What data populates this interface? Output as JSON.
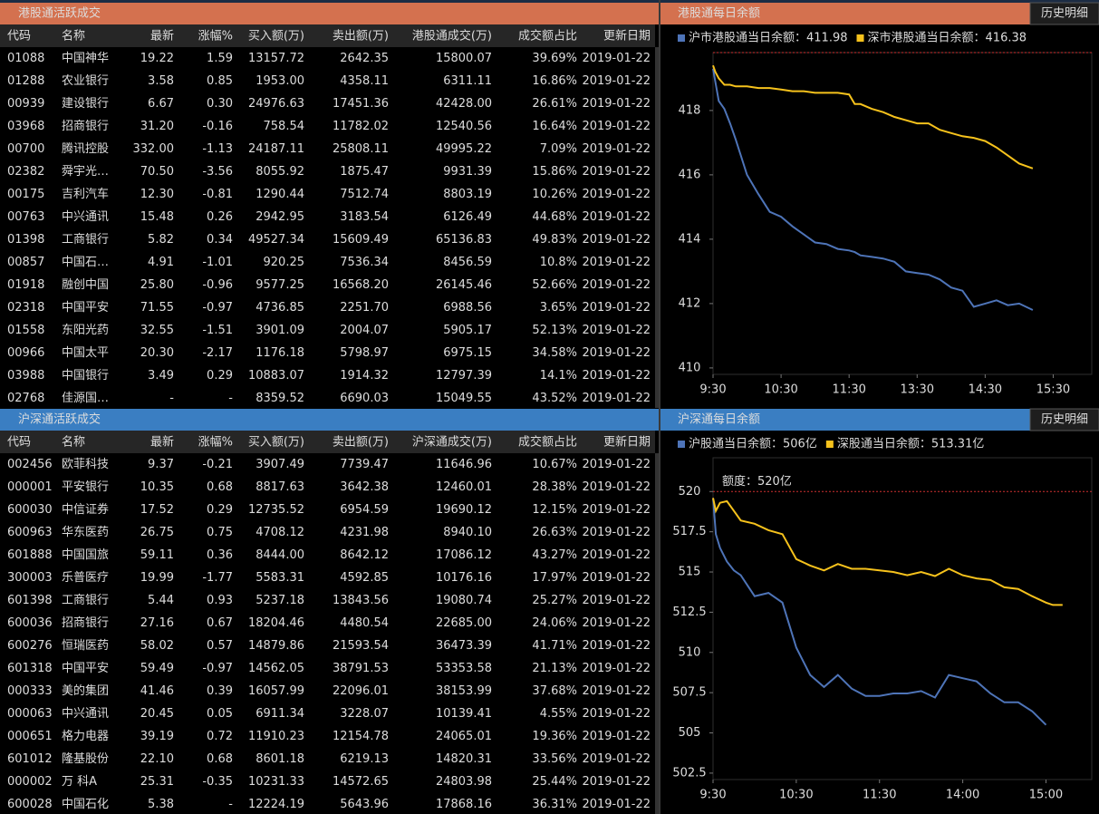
{
  "tables": [
    {
      "title": "港股通活跃成交",
      "headers": [
        "代码",
        "名称",
        "最新",
        "涨幅%",
        "买入额(万)",
        "卖出额(万)",
        "港股通成交(万)",
        "成交额占比",
        "更新日期"
      ],
      "rows": [
        [
          "01088",
          "中国神华",
          "19.22",
          "1.59",
          "13157.72",
          "2642.35",
          "15800.07",
          "39.69%",
          "2019-01-22"
        ],
        [
          "01288",
          "农业银行",
          "3.58",
          "0.85",
          "1953.00",
          "4358.11",
          "6311.11",
          "16.86%",
          "2019-01-22"
        ],
        [
          "00939",
          "建设银行",
          "6.67",
          "0.30",
          "24976.63",
          "17451.36",
          "42428.00",
          "26.61%",
          "2019-01-22"
        ],
        [
          "03968",
          "招商银行",
          "31.20",
          "-0.16",
          "758.54",
          "11782.02",
          "12540.56",
          "16.64%",
          "2019-01-22"
        ],
        [
          "00700",
          "腾讯控股",
          "332.00",
          "-1.13",
          "24187.11",
          "25808.11",
          "49995.22",
          "7.09%",
          "2019-01-22"
        ],
        [
          "02382",
          "舜宇光…",
          "70.50",
          "-3.56",
          "8055.92",
          "1875.47",
          "9931.39",
          "15.86%",
          "2019-01-22"
        ],
        [
          "00175",
          "吉利汽车",
          "12.30",
          "-0.81",
          "1290.44",
          "7512.74",
          "8803.19",
          "10.26%",
          "2019-01-22"
        ],
        [
          "00763",
          "中兴通讯",
          "15.48",
          "0.26",
          "2942.95",
          "3183.54",
          "6126.49",
          "44.68%",
          "2019-01-22"
        ],
        [
          "01398",
          "工商银行",
          "5.82",
          "0.34",
          "49527.34",
          "15609.49",
          "65136.83",
          "49.83%",
          "2019-01-22"
        ],
        [
          "00857",
          "中国石…",
          "4.91",
          "-1.01",
          "920.25",
          "7536.34",
          "8456.59",
          "10.8%",
          "2019-01-22"
        ],
        [
          "01918",
          "融创中国",
          "25.80",
          "-0.96",
          "9577.25",
          "16568.20",
          "26145.46",
          "52.66%",
          "2019-01-22"
        ],
        [
          "02318",
          "中国平安",
          "71.55",
          "-0.97",
          "4736.85",
          "2251.70",
          "6988.56",
          "3.65%",
          "2019-01-22"
        ],
        [
          "01558",
          "东阳光药",
          "32.55",
          "-1.51",
          "3901.09",
          "2004.07",
          "5905.17",
          "52.13%",
          "2019-01-22"
        ],
        [
          "00966",
          "中国太平",
          "20.30",
          "-2.17",
          "1176.18",
          "5798.97",
          "6975.15",
          "34.58%",
          "2019-01-22"
        ],
        [
          "03988",
          "中国银行",
          "3.49",
          "0.29",
          "10883.07",
          "1914.32",
          "12797.39",
          "14.1%",
          "2019-01-22"
        ],
        [
          "02768",
          "佳源国…",
          "-",
          "-",
          "8359.52",
          "6690.03",
          "15049.55",
          "43.52%",
          "2019-01-22"
        ]
      ]
    },
    {
      "title": "沪深通活跃成交",
      "headers": [
        "代码",
        "名称",
        "最新",
        "涨幅%",
        "买入额(万)",
        "卖出额(万)",
        "沪深通成交(万)",
        "成交额占比",
        "更新日期"
      ],
      "rows": [
        [
          "002456",
          "欧菲科技",
          "9.37",
          "-0.21",
          "3907.49",
          "7739.47",
          "11646.96",
          "10.67%",
          "2019-01-22"
        ],
        [
          "000001",
          "平安银行",
          "10.35",
          "0.68",
          "8817.63",
          "3642.38",
          "12460.01",
          "28.38%",
          "2019-01-22"
        ],
        [
          "600030",
          "中信证券",
          "17.52",
          "0.29",
          "12735.52",
          "6954.59",
          "19690.12",
          "12.15%",
          "2019-01-22"
        ],
        [
          "600963",
          "华东医药",
          "26.75",
          "0.75",
          "4708.12",
          "4231.98",
          "8940.10",
          "26.63%",
          "2019-01-22"
        ],
        [
          "601888",
          "中国国旅",
          "59.11",
          "0.36",
          "8444.00",
          "8642.12",
          "17086.12",
          "43.27%",
          "2019-01-22"
        ],
        [
          "300003",
          "乐普医疗",
          "19.99",
          "-1.77",
          "5583.31",
          "4592.85",
          "10176.16",
          "17.97%",
          "2019-01-22"
        ],
        [
          "601398",
          "工商银行",
          "5.44",
          "0.93",
          "5237.18",
          "13843.56",
          "19080.74",
          "25.27%",
          "2019-01-22"
        ],
        [
          "600036",
          "招商银行",
          "27.16",
          "0.67",
          "18204.46",
          "4480.54",
          "22685.00",
          "24.06%",
          "2019-01-22"
        ],
        [
          "600276",
          "恒瑞医药",
          "58.02",
          "0.57",
          "14879.86",
          "21593.54",
          "36473.39",
          "41.71%",
          "2019-01-22"
        ],
        [
          "601318",
          "中国平安",
          "59.49",
          "-0.97",
          "14562.05",
          "38791.53",
          "53353.58",
          "21.13%",
          "2019-01-22"
        ],
        [
          "000333",
          "美的集团",
          "41.46",
          "0.39",
          "16057.99",
          "22096.01",
          "38153.99",
          "37.68%",
          "2019-01-22"
        ],
        [
          "000063",
          "中兴通讯",
          "20.45",
          "0.05",
          "6911.34",
          "3228.07",
          "10139.41",
          "4.55%",
          "2019-01-22"
        ],
        [
          "000651",
          "格力电器",
          "39.19",
          "0.72",
          "11910.23",
          "12154.78",
          "24065.01",
          "19.36%",
          "2019-01-22"
        ],
        [
          "601012",
          "隆基股份",
          "22.10",
          "0.68",
          "8601.18",
          "6219.13",
          "14820.31",
          "33.56%",
          "2019-01-22"
        ],
        [
          "000002",
          "万 科A",
          "25.31",
          "-0.35",
          "10231.33",
          "14572.65",
          "24803.98",
          "25.44%",
          "2019-01-22"
        ],
        [
          "600028",
          "中国石化",
          "5.38",
          "-",
          "12224.19",
          "5643.96",
          "17868.16",
          "36.31%",
          "2019-01-22"
        ]
      ]
    }
  ],
  "chart_data": [
    {
      "type": "line",
      "title": "港股通每日余额",
      "button": "历史明细",
      "x": [
        0,
        2,
        5,
        10,
        15,
        20,
        30,
        40,
        50,
        60,
        70,
        80,
        90,
        100,
        110,
        120,
        125,
        130,
        140,
        150,
        160,
        170,
        180,
        190,
        200,
        210,
        220,
        230,
        240,
        250,
        260,
        270,
        282
      ],
      "xlim": [
        0,
        334
      ],
      "xticks": [
        {
          "value": 0,
          "label": "9:30"
        },
        {
          "value": 60,
          "label": "10:30"
        },
        {
          "value": 120,
          "label": "11:30"
        },
        {
          "value": 180,
          "label": "13:30"
        },
        {
          "value": 240,
          "label": "14:30"
        },
        {
          "value": 300,
          "label": "15:30"
        }
      ],
      "ylim": [
        409.8,
        419.8
      ],
      "yticks": [
        410,
        412,
        414,
        416,
        418
      ],
      "series": [
        {
          "name": "沪市港股通当日余额：",
          "color": "#4e74b8",
          "latest": 411.98,
          "values": [
            419.3,
            418.9,
            418.3,
            418.05,
            417.6,
            417.1,
            416.0,
            415.4,
            414.85,
            414.7,
            414.4,
            414.15,
            413.9,
            413.85,
            413.7,
            413.65,
            413.6,
            413.5,
            413.45,
            413.4,
            413.3,
            413.0,
            412.95,
            412.9,
            412.75,
            412.5,
            412.4,
            411.9,
            412.0,
            412.1,
            411.95,
            412.0,
            411.8
          ]
        },
        {
          "name": "深市港股通当日余额：",
          "color": "#f6c21c",
          "latest": 416.38,
          "values": [
            419.4,
            419.2,
            419.0,
            418.8,
            418.8,
            418.75,
            418.75,
            418.7,
            418.7,
            418.65,
            418.6,
            418.6,
            418.55,
            418.55,
            418.55,
            418.5,
            418.2,
            418.2,
            418.05,
            417.95,
            417.8,
            417.7,
            417.6,
            417.6,
            417.4,
            417.3,
            417.2,
            417.15,
            417.05,
            416.85,
            416.6,
            416.35,
            416.2
          ]
        }
      ]
    },
    {
      "type": "line",
      "title": "沪深通每日余额",
      "button": "历史明细",
      "x": [
        0,
        2,
        5,
        10,
        15,
        20,
        30,
        40,
        50,
        60,
        70,
        80,
        90,
        100,
        110,
        120,
        130,
        140,
        150,
        160,
        170,
        180,
        190,
        200,
        210,
        220,
        230,
        240,
        245,
        252
      ],
      "xlim": [
        0,
        273
      ],
      "xticks": [
        {
          "value": 0,
          "label": "9:30"
        },
        {
          "value": 60,
          "label": "10:30"
        },
        {
          "value": 120,
          "label": "11:30"
        },
        {
          "value": 180,
          "label": "14:00"
        },
        {
          "value": 240,
          "label": "15:00"
        }
      ],
      "ylim": [
        502.1,
        522.1
      ],
      "yticks": [
        502.5,
        505,
        507.5,
        510,
        512.5,
        515,
        517.5,
        520
      ],
      "limit": {
        "value": 520,
        "label": "额度：520亿"
      },
      "series": [
        {
          "name": "沪股通当日余额：",
          "color": "#4e74b8",
          "latest": {
            "value": 506,
            "label": "506亿"
          },
          "values": [
            519.6,
            517.35,
            516.5,
            515.65,
            515.1,
            514.8,
            513.5,
            513.7,
            513.1,
            510.3,
            508.6,
            507.85,
            508.6,
            507.75,
            507.3,
            507.3,
            507.45,
            507.45,
            507.6,
            507.2,
            508.6,
            508.4,
            508.2,
            507.45,
            506.9,
            506.9,
            506.35,
            505.5,
            null,
            null
          ]
        },
        {
          "name": "深股通当日余额：",
          "color": "#f6c21c",
          "latest": {
            "value": 513.31,
            "label": "513.31亿"
          },
          "values": [
            519.6,
            518.8,
            519.3,
            519.4,
            518.8,
            518.2,
            518.0,
            517.6,
            517.35,
            515.8,
            515.4,
            515.1,
            515.5,
            515.2,
            515.2,
            515.1,
            515.0,
            514.8,
            515.0,
            514.75,
            515.2,
            514.8,
            514.6,
            514.5,
            514.05,
            513.95,
            513.5,
            513.1,
            512.95,
            512.95
          ]
        }
      ]
    }
  ]
}
